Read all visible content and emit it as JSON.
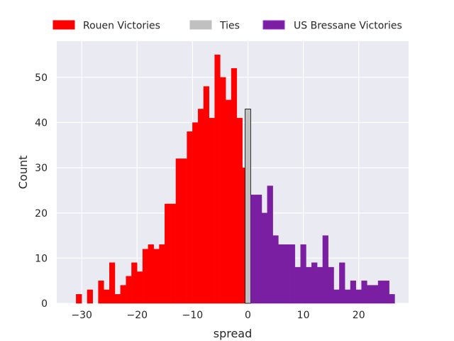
{
  "chart_data": {
    "type": "bar",
    "title": "",
    "xlabel": "spread",
    "ylabel": "Count",
    "xlim": [
      -34.5,
      29
    ],
    "ylim": [
      0,
      58
    ],
    "xticks": [
      -30,
      -20,
      -10,
      0,
      10,
      20
    ],
    "yticks": [
      0,
      10,
      20,
      30,
      40,
      50
    ],
    "grid": true,
    "legend_placement": "top",
    "background": "#eaeaf2",
    "series": [
      {
        "name": "Rouen Victories",
        "color": "#ff0000",
        "bins": [
          {
            "x0": -31,
            "x1": -30,
            "y": 2
          },
          {
            "x0": -29,
            "x1": -28,
            "y": 3
          },
          {
            "x0": -27,
            "x1": -26,
            "y": 5
          },
          {
            "x0": -26,
            "x1": -25,
            "y": 3
          },
          {
            "x0": -25,
            "x1": -24,
            "y": 9
          },
          {
            "x0": -24,
            "x1": -23,
            "y": 2
          },
          {
            "x0": -23,
            "x1": -22,
            "y": 4
          },
          {
            "x0": -22,
            "x1": -21,
            "y": 6
          },
          {
            "x0": -21,
            "x1": -20,
            "y": 9
          },
          {
            "x0": -20,
            "x1": -19,
            "y": 7
          },
          {
            "x0": -19,
            "x1": -18,
            "y": 12
          },
          {
            "x0": -18,
            "x1": -17,
            "y": 13
          },
          {
            "x0": -17,
            "x1": -16,
            "y": 12
          },
          {
            "x0": -16,
            "x1": -15,
            "y": 13
          },
          {
            "x0": -15,
            "x1": -14,
            "y": 22
          },
          {
            "x0": -14,
            "x1": -13,
            "y": 22
          },
          {
            "x0": -13,
            "x1": -12,
            "y": 32
          },
          {
            "x0": -12,
            "x1": -11,
            "y": 32
          },
          {
            "x0": -11,
            "x1": -10,
            "y": 38
          },
          {
            "x0": -10,
            "x1": -9,
            "y": 40
          },
          {
            "x0": -9,
            "x1": -8,
            "y": 43
          },
          {
            "x0": -8,
            "x1": -7,
            "y": 48
          },
          {
            "x0": -7,
            "x1": -6,
            "y": 41
          },
          {
            "x0": -6,
            "x1": -5,
            "y": 55
          },
          {
            "x0": -5,
            "x1": -4,
            "y": 50
          },
          {
            "x0": -4,
            "x1": -3,
            "y": 45
          },
          {
            "x0": -3,
            "x1": -2,
            "y": 52
          },
          {
            "x0": -2,
            "x1": -1,
            "y": 41
          },
          {
            "x0": -1,
            "x1": 0,
            "y": 30
          }
        ]
      },
      {
        "name": "Ties",
        "color": "#c0c0c0",
        "bins": [
          {
            "x0": -0.5,
            "x1": 0.5,
            "y": 43
          }
        ]
      },
      {
        "name": "US Bressane Victories",
        "color": "#7a1fa2",
        "bins": [
          {
            "x0": 0.5,
            "x1": 1.5,
            "y": 24
          },
          {
            "x0": 1.5,
            "x1": 2.5,
            "y": 24
          },
          {
            "x0": 2.5,
            "x1": 3.5,
            "y": 20
          },
          {
            "x0": 3.5,
            "x1": 4.5,
            "y": 26
          },
          {
            "x0": 4.5,
            "x1": 5.5,
            "y": 15
          },
          {
            "x0": 5.5,
            "x1": 6.5,
            "y": 13
          },
          {
            "x0": 6.5,
            "x1": 7.5,
            "y": 13
          },
          {
            "x0": 7.5,
            "x1": 8.5,
            "y": 13
          },
          {
            "x0": 8.5,
            "x1": 9.5,
            "y": 8
          },
          {
            "x0": 9.5,
            "x1": 10.5,
            "y": 13
          },
          {
            "x0": 10.5,
            "x1": 11.5,
            "y": 8
          },
          {
            "x0": 11.5,
            "x1": 12.5,
            "y": 9
          },
          {
            "x0": 12.5,
            "x1": 13.5,
            "y": 8
          },
          {
            "x0": 13.5,
            "x1": 14.5,
            "y": 15
          },
          {
            "x0": 14.5,
            "x1": 15.5,
            "y": 8
          },
          {
            "x0": 15.5,
            "x1": 16.5,
            "y": 3
          },
          {
            "x0": 16.5,
            "x1": 17.5,
            "y": 9
          },
          {
            "x0": 17.5,
            "x1": 18.5,
            "y": 3
          },
          {
            "x0": 18.5,
            "x1": 19.5,
            "y": 5
          },
          {
            "x0": 19.5,
            "x1": 20.5,
            "y": 3
          },
          {
            "x0": 20.5,
            "x1": 21.5,
            "y": 5
          },
          {
            "x0": 21.5,
            "x1": 22.5,
            "y": 4
          },
          {
            "x0": 22.5,
            "x1": 23.5,
            "y": 4
          },
          {
            "x0": 23.5,
            "x1": 24.5,
            "y": 5
          },
          {
            "x0": 24.5,
            "x1": 25.5,
            "y": 5
          },
          {
            "x0": 25.5,
            "x1": 26.5,
            "y": 2
          }
        ]
      }
    ]
  }
}
